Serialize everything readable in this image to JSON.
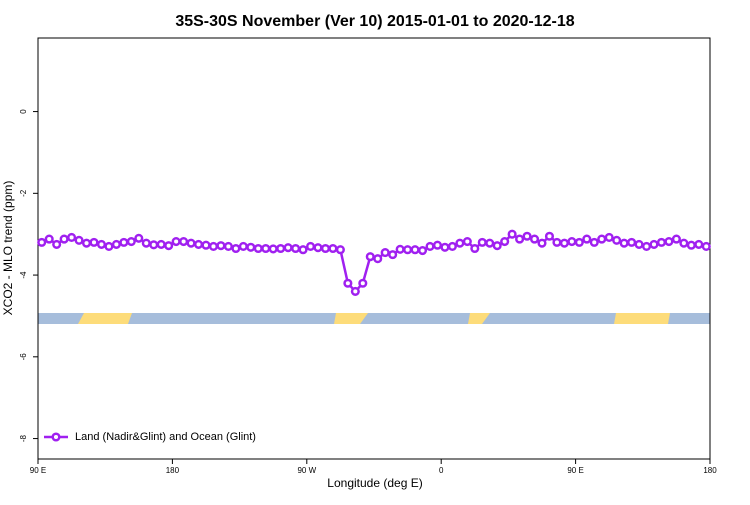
{
  "chart_data": {
    "type": "line",
    "title": "35S-30S November (Ver 10)   2015-01-01 to 2020-12-18",
    "x_label": "Longitude (deg E)",
    "y_label": "XCO2 - MLO trend (ppm)",
    "xlim": [
      90,
      540
    ],
    "xticks": [
      {
        "value": 90,
        "label": "90 E"
      },
      180,
      {
        "value": 270,
        "label": "90 W"
      },
      {
        "value": 360,
        "label": "0"
      },
      {
        "value": 450,
        "label": "90 E"
      },
      {
        "value": 540,
        "label": "180"
      }
    ],
    "ylim": [
      -8.5,
      1.8
    ],
    "yticks": [
      -8,
      -6,
      -4,
      -2,
      0
    ],
    "legend_position": "bottom-left",
    "series": [
      {
        "name": "Land (Nadir&Glint) and Ocean (Glint)",
        "color": "#a020f0",
        "x": [
          92.5,
          97.5,
          102.5,
          107.5,
          112.5,
          117.5,
          122.5,
          127.5,
          132.5,
          137.5,
          142.5,
          147.5,
          152.5,
          157.5,
          162.5,
          167.5,
          172.5,
          177.5,
          182.5,
          187.5,
          192.5,
          197.5,
          202.5,
          207.5,
          212.5,
          217.5,
          222.5,
          227.5,
          232.5,
          237.5,
          242.5,
          247.5,
          252.5,
          257.5,
          262.5,
          267.5,
          272.5,
          277.5,
          282.5,
          287.5,
          292.5,
          297.5,
          302.5,
          307.5,
          312.5,
          317.5,
          322.5,
          327.5,
          332.5,
          337.5,
          342.5,
          347.5,
          352.5,
          357.5,
          362.5,
          367.5,
          372.5,
          377.5,
          382.5,
          387.5,
          392.5,
          397.5,
          402.5,
          407.5,
          412.5,
          417.5,
          422.5,
          427.5,
          432.5,
          437.5,
          442.5,
          447.5,
          452.5,
          457.5,
          462.5,
          467.5,
          472.5,
          477.5,
          482.5,
          487.5,
          492.5,
          497.5,
          502.5,
          507.5,
          512.5,
          517.5,
          522.5,
          527.5,
          532.5,
          537.5
        ],
        "values": [
          -3.2,
          -3.12,
          -3.25,
          -3.12,
          -3.08,
          -3.15,
          -3.22,
          -3.2,
          -3.25,
          -3.3,
          -3.25,
          -3.2,
          -3.18,
          -3.1,
          -3.22,
          -3.26,
          -3.25,
          -3.28,
          -3.18,
          -3.18,
          -3.22,
          -3.25,
          -3.27,
          -3.3,
          -3.28,
          -3.3,
          -3.35,
          -3.3,
          -3.32,
          -3.35,
          -3.35,
          -3.36,
          -3.35,
          -3.33,
          -3.35,
          -3.38,
          -3.3,
          -3.33,
          -3.35,
          -3.35,
          -3.38,
          -4.2,
          -4.4,
          -4.2,
          -3.55,
          -3.6,
          -3.45,
          -3.5,
          -3.37,
          -3.38,
          -3.38,
          -3.4,
          -3.3,
          -3.27,
          -3.32,
          -3.3,
          -3.22,
          -3.18,
          -3.35,
          -3.2,
          -3.22,
          -3.28,
          -3.18,
          -3.0,
          -3.12,
          -3.05,
          -3.12,
          -3.22,
          -3.05,
          -3.2,
          -3.22,
          -3.18,
          -3.2,
          -3.12,
          -3.2,
          -3.12,
          -3.08,
          -3.15,
          -3.22,
          -3.2,
          -3.25,
          -3.3,
          -3.25,
          -3.2,
          -3.18,
          -3.12,
          -3.22,
          -3.27,
          -3.25,
          -3.3
        ]
      }
    ]
  }
}
